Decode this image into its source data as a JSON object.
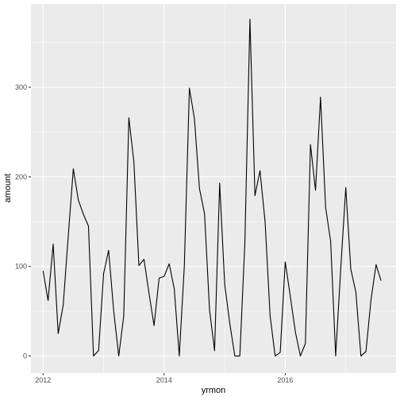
{
  "chart_data": {
    "type": "line",
    "xlabel": "yrmon",
    "ylabel": "amount",
    "xlim": [
      2011.8,
      2017.83
    ],
    "ylim": [
      -19,
      393
    ],
    "x_ticks": [
      2012,
      2014,
      2016
    ],
    "x_tick_labels": [
      "2012",
      "2014",
      "2016"
    ],
    "y_ticks": [
      0,
      100,
      200,
      300
    ],
    "y_tick_labels": [
      "0",
      "100",
      "200",
      "300"
    ],
    "grid": true,
    "colors": {
      "panel_background": "#ebebeb",
      "grid_major": "#ffffff",
      "line": "#000000",
      "tick_text": "#4d4d4d"
    },
    "series": [
      {
        "x": [
          2012.0,
          2012.083,
          2012.167,
          2012.25,
          2012.333,
          2012.417,
          2012.5,
          2012.583,
          2012.667,
          2012.75,
          2012.833,
          2012.917,
          2013.0,
          2013.083,
          2013.167,
          2013.25,
          2013.333,
          2013.417,
          2013.5,
          2013.583,
          2013.667,
          2013.75,
          2013.833,
          2013.917,
          2014.0,
          2014.083,
          2014.167,
          2014.25,
          2014.333,
          2014.417,
          2014.5,
          2014.583,
          2014.667,
          2014.75,
          2014.833,
          2014.917,
          2015.0,
          2015.083,
          2015.167,
          2015.25,
          2015.333,
          2015.417,
          2015.5,
          2015.583,
          2015.667,
          2015.75,
          2015.833,
          2015.917,
          2016.0,
          2016.083,
          2016.167,
          2016.25,
          2016.333,
          2016.417,
          2016.5,
          2016.583,
          2016.667,
          2016.75,
          2016.833,
          2016.917,
          2017.0,
          2017.083,
          2017.167,
          2017.25,
          2017.333,
          2017.417,
          2017.5,
          2017.583
        ],
        "values": [
          95,
          62,
          125,
          25,
          57,
          135,
          209,
          174,
          158,
          145,
          0,
          6,
          92,
          118,
          50,
          0,
          45,
          266,
          217,
          101,
          108,
          70,
          34,
          87,
          89,
          103,
          75,
          0,
          100,
          299,
          265,
          187,
          159,
          51,
          6,
          193,
          80,
          37,
          0,
          0,
          126,
          376,
          179,
          207,
          150,
          45,
          0,
          4,
          105,
          67,
          27,
          0,
          14,
          236,
          185,
          289,
          166,
          128,
          0,
          98,
          188,
          97,
          71,
          0,
          5,
          63,
          102,
          84
        ]
      }
    ]
  }
}
